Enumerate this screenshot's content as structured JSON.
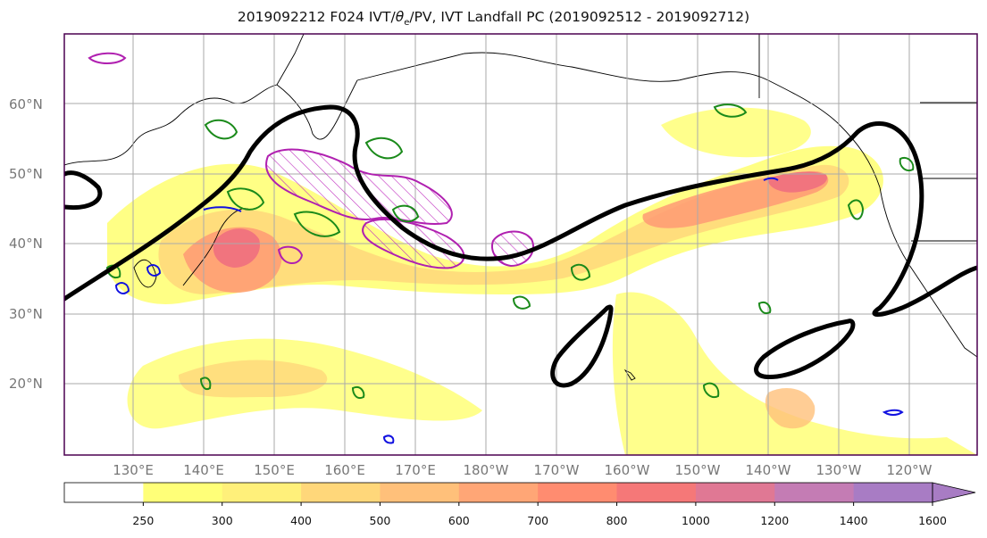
{
  "title": {
    "prefix": "2019092212 F024 IVT/",
    "theta_symbol": "θ",
    "theta_sub": "e",
    "suffix": "/PV, IVT Landfall PC (2019092512 - 2019092712)"
  },
  "lat_labels": [
    "60°N",
    "50°N",
    "40°N",
    "30°N",
    "20°N"
  ],
  "lon_labels": [
    "130°E",
    "140°E",
    "150°E",
    "160°E",
    "170°E",
    "180°W",
    "170°W",
    "160°W",
    "150°W",
    "140°W",
    "130°W",
    "120°W"
  ],
  "colorbar": {
    "ticks": [
      "250",
      "300",
      "400",
      "500",
      "600",
      "700",
      "800",
      "1000",
      "1200",
      "1400",
      "1600"
    ],
    "colors": [
      "#ffffff",
      "#ffff78",
      "#fff07a",
      "#ffd77a",
      "#ffc07a",
      "#ffa676",
      "#ff8c70",
      "#f57878",
      "#e07894",
      "#c47cb4",
      "#a87cc4"
    ],
    "extend": "max"
  }
}
